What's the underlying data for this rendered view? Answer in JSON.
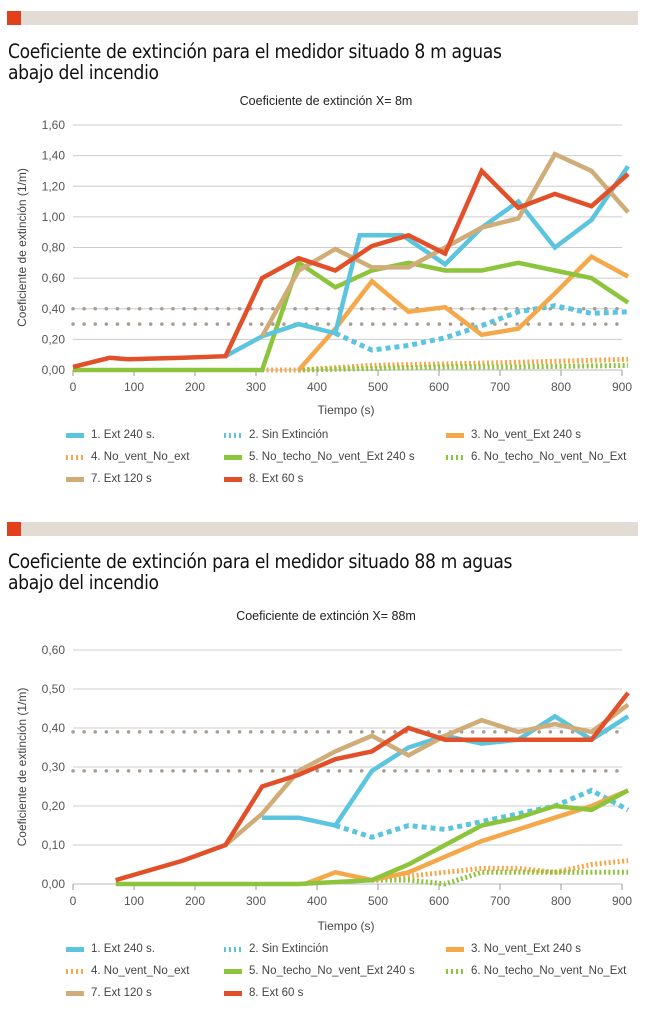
{
  "sections": [
    {
      "heading": "Coeficiente de extinción para el medidor situado 8 m aguas abajo del incendio"
    },
    {
      "heading": "Coeficiente de extinción para el medidor situado 88 m aguas abajo del incendio"
    }
  ],
  "colors": {
    "accent": "#e2401c",
    "bar": "#e2dcd4",
    "ext240": "#5bc4df",
    "sinExt": "#5bc4df",
    "noVentExt240": "#f5a84a",
    "noVentNoExt": "#f5a84a",
    "noTechoExt240": "#8cc43c",
    "noTechoNoExt": "#8cc43c",
    "ext120": "#cfac78",
    "ext60": "#e2502a",
    "refline": "#a79d92",
    "grid": "#cccccc"
  },
  "legend": [
    {
      "label": "1. Ext 240 s.",
      "key": "ext240",
      "style": "solid"
    },
    {
      "label": "2. Sin Extinción",
      "key": "sinExt",
      "style": "dotted"
    },
    {
      "label": "3. No_vent_Ext 240 s",
      "key": "noVentExt240",
      "style": "solid"
    },
    {
      "label": "4. No_vent_No_ext",
      "key": "noVentNoExt",
      "style": "dotted"
    },
    {
      "label": "5. No_techo_No_vent_Ext 240 s",
      "key": "noTechoExt240",
      "style": "solid"
    },
    {
      "label": "6. No_techo_No_vent_No_Ext",
      "key": "noTechoNoExt",
      "style": "dotted"
    },
    {
      "label": "7. Ext 120 s",
      "key": "ext120",
      "style": "solid"
    },
    {
      "label": "8. Ext 60 s",
      "key": "ext60",
      "style": "solid"
    }
  ],
  "chart_data": [
    {
      "type": "line",
      "title": "Coeficiente de extinción X= 8m",
      "xlabel": "Tiempo (s)",
      "ylabel": "Coeficiente de extinción (1/m)",
      "xlim": [
        0,
        900
      ],
      "ylim": [
        0,
        1.6
      ],
      "xticks": [
        "0",
        "100",
        "200",
        "300",
        "400",
        "500",
        "600",
        "700",
        "800",
        "900"
      ],
      "xtick_values": [
        0,
        100,
        200,
        300,
        400,
        500,
        600,
        700,
        800,
        900
      ],
      "yticks": [
        "0,00",
        "0,20",
        "0,40",
        "0,60",
        "0,80",
        "1,00",
        "1,20",
        "1,40",
        "1,60"
      ],
      "ytick_values": [
        0,
        0.2,
        0.4,
        0.6,
        0.8,
        1.0,
        1.2,
        1.4,
        1.6
      ],
      "grid": true,
      "legend_position": "bottom",
      "reference_lines": [
        0.4,
        0.3
      ],
      "series": [
        {
          "name": "2. Sin Extinción",
          "key": "sinExt",
          "style": "dotted",
          "x": [
            430,
            490,
            550,
            610,
            670,
            730,
            790,
            850,
            910
          ],
          "y": [
            0.24,
            0.13,
            0.16,
            0.21,
            0.29,
            0.38,
            0.42,
            0.37,
            0.38
          ]
        },
        {
          "name": "4. No_vent_No_ext",
          "key": "noVentNoExt",
          "style": "dotted",
          "x": [
            310,
            370,
            490,
            610,
            730,
            910
          ],
          "y": [
            0.0,
            0.0,
            0.03,
            0.04,
            0.05,
            0.07
          ]
        },
        {
          "name": "6. No_techo_No_vent_No_Ext",
          "key": "noTechoNoExt",
          "style": "dotted",
          "x": [
            370,
            490,
            610,
            730,
            910
          ],
          "y": [
            0.0,
            0.01,
            0.02,
            0.02,
            0.03
          ]
        },
        {
          "name": "3. No_vent_Ext 240 s",
          "key": "noVentExt240",
          "style": "solid",
          "x": [
            370,
            430,
            490,
            550,
            610,
            670,
            730,
            790,
            850,
            910
          ],
          "y": [
            0.0,
            0.27,
            0.58,
            0.38,
            0.41,
            0.23,
            0.27,
            0.5,
            0.74,
            0.61
          ]
        },
        {
          "name": "5. No_techo_No_vent_Ext 240 s",
          "key": "noTechoExt240",
          "style": "solid",
          "x": [
            0,
            310,
            370,
            430,
            490,
            550,
            610,
            670,
            730,
            790,
            850,
            910
          ],
          "y": [
            0.0,
            0.0,
            0.7,
            0.54,
            0.65,
            0.7,
            0.65,
            0.65,
            0.7,
            0.65,
            0.6,
            0.44
          ]
        },
        {
          "name": "1. Ext 240 s.",
          "key": "ext240",
          "style": "solid",
          "x": [
            250,
            310,
            370,
            430,
            470,
            540,
            610,
            670,
            730,
            790,
            850,
            910
          ],
          "y": [
            0.09,
            0.22,
            0.3,
            0.24,
            0.88,
            0.88,
            0.69,
            0.93,
            1.1,
            0.8,
            0.98,
            1.33
          ]
        },
        {
          "name": "7. Ext 120 s",
          "key": "ext120",
          "style": "solid",
          "x": [
            310,
            370,
            430,
            490,
            550,
            610,
            670,
            730,
            790,
            850,
            910
          ],
          "y": [
            0.22,
            0.65,
            0.79,
            0.67,
            0.67,
            0.8,
            0.93,
            0.99,
            1.41,
            1.3,
            1.03
          ]
        },
        {
          "name": "8. Ext 60 s",
          "key": "ext60",
          "style": "solid",
          "x": [
            0,
            60,
            90,
            180,
            250,
            310,
            370,
            430,
            490,
            550,
            610,
            670,
            730,
            790,
            850,
            910
          ],
          "y": [
            0.02,
            0.08,
            0.07,
            0.08,
            0.09,
            0.6,
            0.73,
            0.65,
            0.81,
            0.88,
            0.76,
            1.3,
            1.06,
            1.15,
            1.07,
            1.28
          ]
        }
      ]
    },
    {
      "type": "line",
      "title": "Coeficiente de extinción X= 88m",
      "xlabel": "Tiempo (s)",
      "ylabel": "Coeficiente de extinción (1/m)",
      "xlim": [
        0,
        900
      ],
      "ylim": [
        0,
        0.6
      ],
      "xticks": [
        "0",
        "100",
        "200",
        "300",
        "400",
        "500",
        "600",
        "700",
        "800",
        "900"
      ],
      "xtick_values": [
        0,
        100,
        200,
        300,
        400,
        500,
        600,
        700,
        800,
        900
      ],
      "yticks": [
        "0,00",
        "0,10",
        "0,20",
        "0,30",
        "0,40",
        "0,50",
        "0,60"
      ],
      "ytick_values": [
        0,
        0.1,
        0.2,
        0.3,
        0.4,
        0.5,
        0.6
      ],
      "grid": true,
      "legend_position": "bottom",
      "reference_lines": [
        0.39,
        0.29
      ],
      "series": [
        {
          "name": "2. Sin Extinción",
          "key": "sinExt",
          "style": "dotted",
          "x": [
            430,
            490,
            550,
            610,
            670,
            730,
            790,
            850,
            910
          ],
          "y": [
            0.15,
            0.12,
            0.15,
            0.14,
            0.16,
            0.18,
            0.2,
            0.24,
            0.19
          ]
        },
        {
          "name": "4. No_vent_No_ext",
          "key": "noVentNoExt",
          "style": "dotted",
          "x": [
            490,
            550,
            610,
            670,
            730,
            790,
            850,
            910
          ],
          "y": [
            0.01,
            0.02,
            0.03,
            0.04,
            0.04,
            0.03,
            0.05,
            0.06
          ]
        },
        {
          "name": "6. No_techo_No_vent_No_Ext",
          "key": "noTechoNoExt",
          "style": "dotted",
          "x": [
            490,
            550,
            610,
            670,
            730,
            790,
            850,
            910
          ],
          "y": [
            0.01,
            0.01,
            0.0,
            0.03,
            0.03,
            0.03,
            0.03,
            0.03
          ]
        },
        {
          "name": "3. No_vent_Ext 240 s",
          "key": "noVentExt240",
          "style": "solid",
          "x": [
            380,
            430,
            490,
            550,
            610,
            670,
            730,
            790,
            850,
            910
          ],
          "y": [
            0.0,
            0.03,
            0.01,
            0.03,
            0.07,
            0.11,
            0.14,
            0.17,
            0.2,
            0.24
          ]
        },
        {
          "name": "5. No_techo_No_vent_Ext 240 s",
          "key": "noTechoExt240",
          "style": "solid",
          "x": [
            70,
            370,
            490,
            550,
            610,
            670,
            730,
            790,
            850,
            910
          ],
          "y": [
            0.0,
            0.0,
            0.01,
            0.05,
            0.1,
            0.15,
            0.17,
            0.2,
            0.19,
            0.24
          ]
        },
        {
          "name": "1. Ext 240 s.",
          "key": "ext240",
          "style": "solid",
          "x": [
            310,
            370,
            430,
            490,
            550,
            610,
            670,
            730,
            790,
            850,
            910
          ],
          "y": [
            0.17,
            0.17,
            0.15,
            0.29,
            0.35,
            0.38,
            0.36,
            0.37,
            0.43,
            0.37,
            0.43
          ]
        },
        {
          "name": "7. Ext 120 s",
          "key": "ext120",
          "style": "solid",
          "x": [
            250,
            310,
            370,
            430,
            490,
            550,
            610,
            670,
            730,
            790,
            850,
            910
          ],
          "y": [
            0.1,
            0.18,
            0.29,
            0.34,
            0.38,
            0.33,
            0.38,
            0.42,
            0.39,
            0.41,
            0.39,
            0.46
          ]
        },
        {
          "name": "8. Ext 60 s",
          "key": "ext60",
          "style": "solid",
          "x": [
            70,
            180,
            250,
            310,
            370,
            430,
            490,
            550,
            610,
            790,
            850,
            910
          ],
          "y": [
            0.01,
            0.06,
            0.1,
            0.25,
            0.28,
            0.32,
            0.34,
            0.4,
            0.37,
            0.37,
            0.37,
            0.49
          ]
        }
      ]
    }
  ]
}
